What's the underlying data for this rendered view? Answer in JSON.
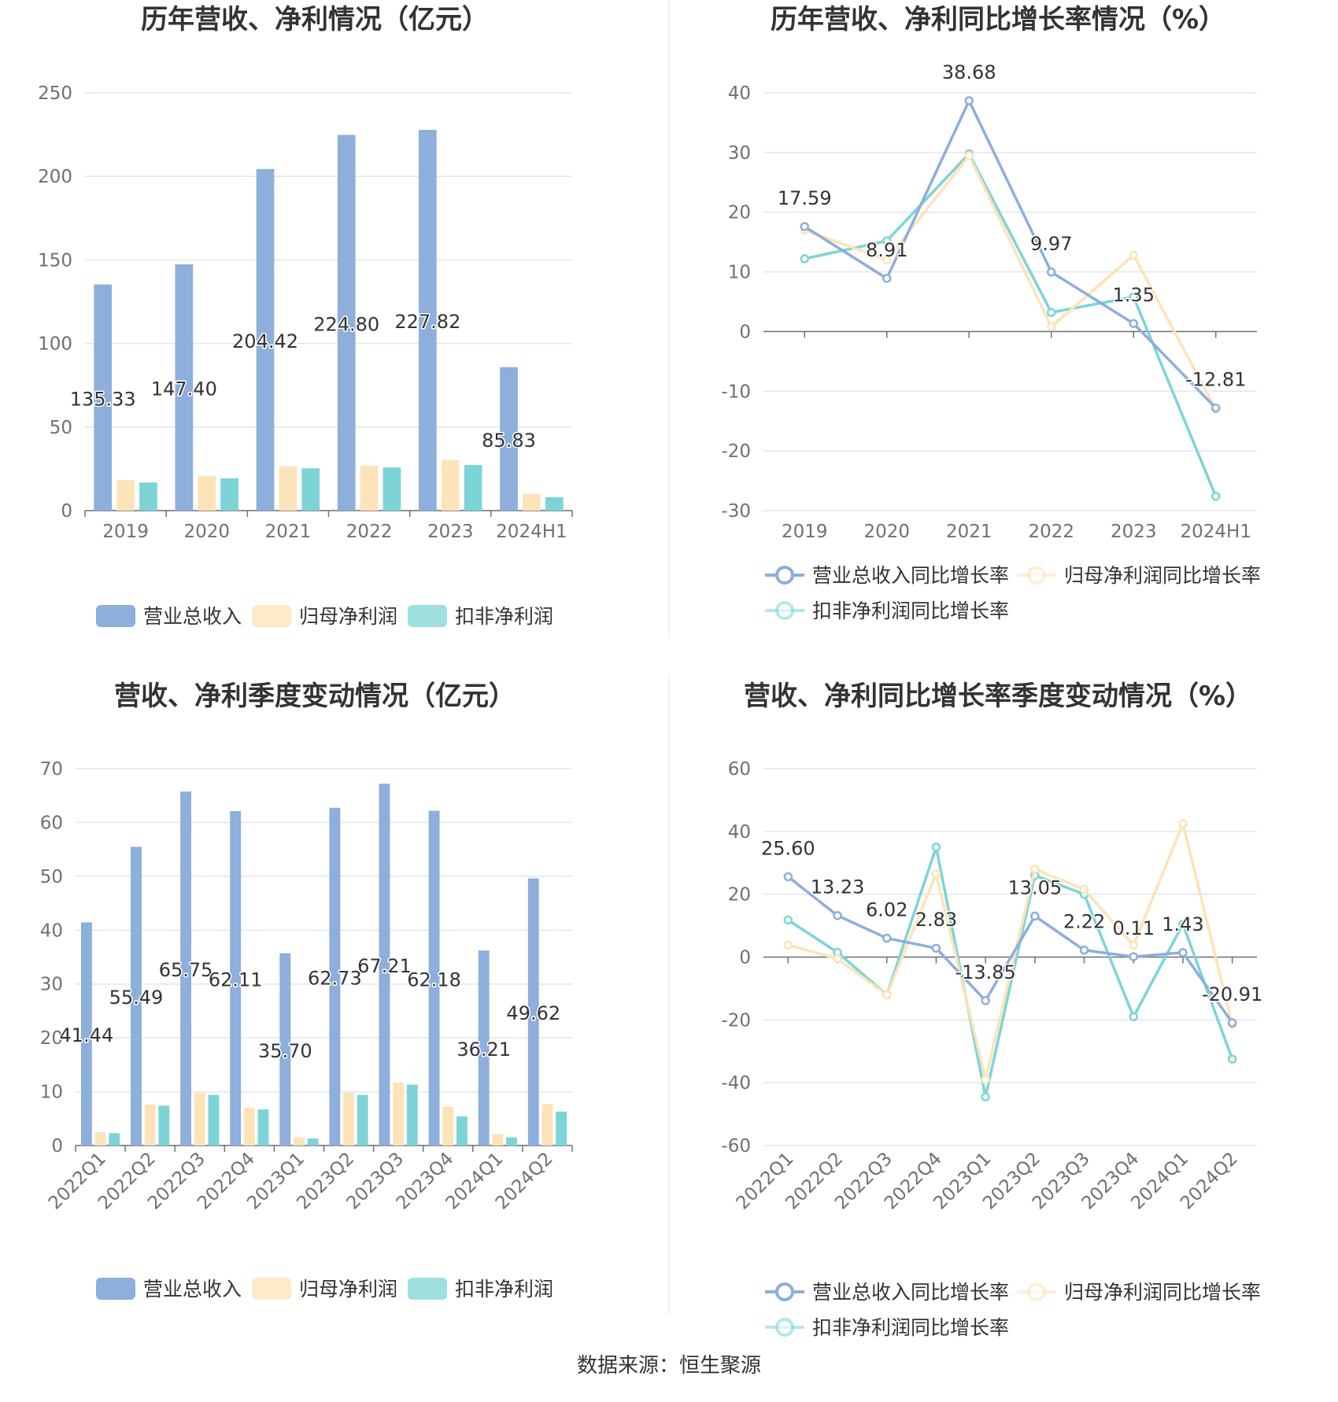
{
  "source": "数据来源：恒生聚源",
  "colors": {
    "revenue": "#8eaedb",
    "net_profit": "#fde3b8",
    "deducted_profit": "#7dd4d6",
    "grid": "#e0e6f1",
    "axis": "#6e7079"
  },
  "chart_data": [
    {
      "id": "annual-amount",
      "type": "bar",
      "title": "历年营收、净利情况（亿元）",
      "categories": [
        "2019",
        "2020",
        "2021",
        "2022",
        "2023",
        "2024H1"
      ],
      "ylim": [
        0,
        250
      ],
      "yticks": [
        0,
        50,
        100,
        150,
        200,
        250
      ],
      "grid": true,
      "legend": "bottom",
      "series": [
        {
          "name": "营业总收入",
          "values": [
            135.33,
            147.4,
            204.42,
            224.8,
            227.82,
            85.83
          ],
          "labels": [
            "135.33",
            "147.40",
            "204.42",
            "224.80",
            "227.82",
            "85.83"
          ]
        },
        {
          "name": "归母净利润",
          "values": [
            18.3,
            20.6,
            26.5,
            26.8,
            30.2,
            10.0
          ]
        },
        {
          "name": "扣非净利润",
          "values": [
            16.8,
            19.3,
            25.3,
            25.8,
            27.3,
            8.0
          ]
        }
      ]
    },
    {
      "id": "annual-growth",
      "type": "line",
      "title": "历年营收、净利同比增长率情况（%）",
      "categories": [
        "2019",
        "2020",
        "2021",
        "2022",
        "2023",
        "2024H1"
      ],
      "ylim": [
        -30,
        40
      ],
      "yticks": [
        -30,
        -20,
        -10,
        0,
        10,
        20,
        30,
        40
      ],
      "grid": true,
      "legend": "bottom",
      "series": [
        {
          "name": "营业总收入同比增长率",
          "values": [
            17.59,
            8.91,
            38.68,
            9.97,
            1.35,
            -12.81
          ],
          "labels": [
            "17.59",
            "8.91",
            "38.68",
            "9.97",
            "1.35",
            "-12.81"
          ]
        },
        {
          "name": "归母净利润同比增长率",
          "values": [
            17.0,
            12.0,
            29.5,
            0.8,
            12.8,
            -13.0
          ]
        },
        {
          "name": "扣非净利润同比增长率",
          "values": [
            12.2,
            15.2,
            29.8,
            3.2,
            5.8,
            -27.6
          ]
        }
      ]
    },
    {
      "id": "quarterly-amount",
      "type": "bar",
      "title": "营收、净利季度变动情况（亿元）",
      "categories": [
        "2022Q1",
        "2022Q2",
        "2022Q3",
        "2022Q4",
        "2023Q1",
        "2023Q2",
        "2023Q3",
        "2023Q4",
        "2024Q1",
        "2024Q2"
      ],
      "ylim": [
        0,
        70
      ],
      "yticks": [
        0,
        10,
        20,
        30,
        40,
        50,
        60,
        70
      ],
      "grid": true,
      "legend": "bottom",
      "series": [
        {
          "name": "营业总收入",
          "values": [
            41.44,
            55.49,
            65.75,
            62.11,
            35.7,
            62.73,
            67.21,
            62.18,
            36.21,
            49.62
          ],
          "labels": [
            "41.44",
            "55.49",
            "65.75",
            "62.11",
            "35.70",
            "62.73",
            "67.21",
            "62.18",
            "36.21",
            "49.62"
          ]
        },
        {
          "name": "归母净利润",
          "values": [
            2.5,
            7.6,
            9.8,
            7.0,
            1.5,
            9.8,
            11.7,
            7.2,
            2.1,
            7.7
          ]
        },
        {
          "name": "扣非净利润",
          "values": [
            2.3,
            7.4,
            9.4,
            6.7,
            1.3,
            9.4,
            11.3,
            5.4,
            1.5,
            6.3
          ]
        }
      ]
    },
    {
      "id": "quarterly-growth",
      "type": "line",
      "title": "营收、净利同比增长率季度变动情况（%）",
      "categories": [
        "2022Q1",
        "2022Q2",
        "2022Q3",
        "2022Q4",
        "2023Q1",
        "2023Q2",
        "2023Q3",
        "2023Q4",
        "2024Q1",
        "2024Q2"
      ],
      "ylim": [
        -60,
        60
      ],
      "yticks": [
        -60,
        -40,
        -20,
        0,
        20,
        40,
        60
      ],
      "grid": true,
      "legend": "bottom",
      "series": [
        {
          "name": "营业总收入同比增长率",
          "values": [
            25.6,
            13.23,
            6.02,
            2.83,
            -13.85,
            13.05,
            2.22,
            0.11,
            1.43,
            -20.91
          ],
          "labels": [
            "25.60",
            "13.23",
            "6.02",
            "2.83",
            "-13.85",
            "13.05",
            "2.22",
            "0.11",
            "1.43",
            "-20.91"
          ]
        },
        {
          "name": "归母净利润同比增长率",
          "values": [
            3.8,
            -0.5,
            -12.0,
            26.5,
            -39.0,
            28.0,
            21.5,
            3.8,
            42.5,
            -21.5
          ]
        },
        {
          "name": "扣非净利润同比增长率",
          "values": [
            11.8,
            1.5,
            -12.0,
            35.0,
            -44.5,
            26.0,
            20.0,
            -19.0,
            10.5,
            -32.5
          ]
        }
      ]
    }
  ]
}
